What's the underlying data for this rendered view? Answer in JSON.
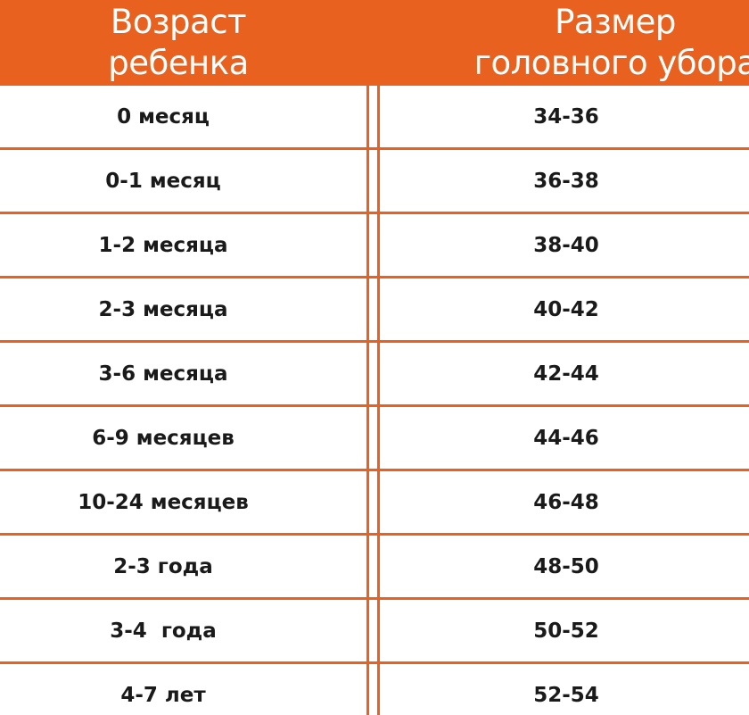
{
  "header": {
    "age_line1": "Возраст",
    "age_line2": "ребенка",
    "size_line1": "Размер",
    "size_line2": "головного убора"
  },
  "rows": [
    {
      "age": "0 месяц",
      "size": "34-36"
    },
    {
      "age": "0-1 месяц",
      "size": "36-38"
    },
    {
      "age": "1-2 месяца",
      "size": "38-40"
    },
    {
      "age": "2-3 месяца",
      "size": "40-42"
    },
    {
      "age": "3-6 месяца",
      "size": "42-44"
    },
    {
      "age": "6-9 месяцев",
      "size": "44-46"
    },
    {
      "age": "10-24 месяцев",
      "size": "46-48"
    },
    {
      "age": "2-3 года",
      "size": "48-50"
    },
    {
      "age": "3-4  года",
      "size": "50-52"
    },
    {
      "age": "4-7 лет",
      "size": "52-54"
    }
  ],
  "colors": {
    "accent": "#e8611f",
    "text": "#1a1a1a",
    "header_text": "#ffffff"
  }
}
